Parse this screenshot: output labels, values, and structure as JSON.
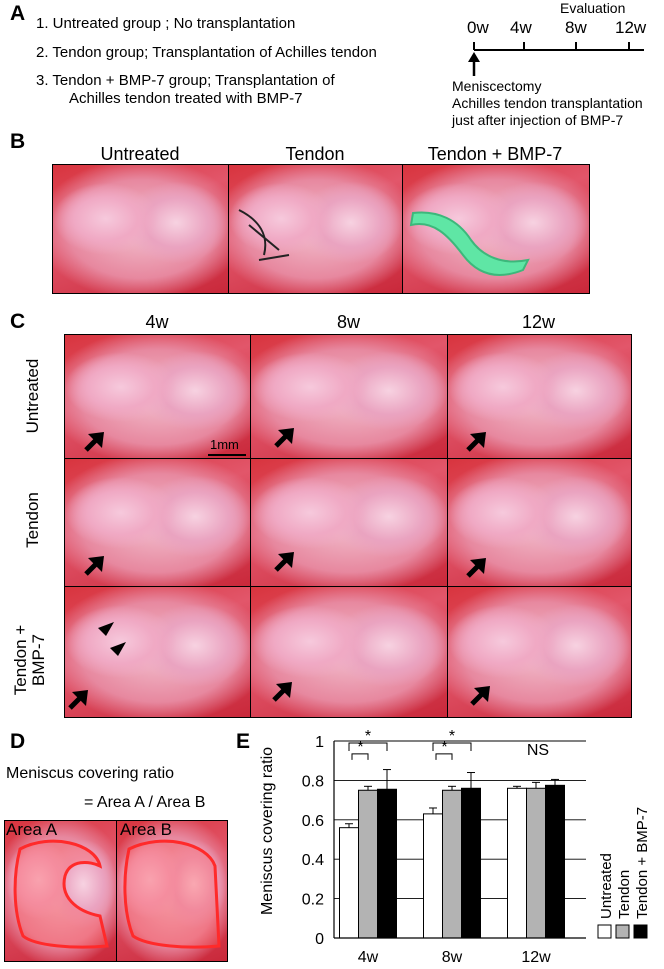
{
  "panelA": {
    "letter": "A",
    "groups": [
      "1. Untreated group ; No transplantation",
      "2. Tendon group; Transplantation of Achilles tendon",
      "3. Tendon + BMP-7 group; Transplantation of",
      "Achilles tendon treated with BMP-7"
    ],
    "timeline": {
      "evaluation_label": "Evaluation",
      "ticks": [
        "0w",
        "4w",
        "8w",
        "12w"
      ],
      "notes": [
        "Meniscectomy",
        "Achilles tendon transplantation",
        "just after injection of BMP-7"
      ]
    }
  },
  "panelB": {
    "letter": "B",
    "headers": [
      "Untreated",
      "Tendon",
      "Tendon + BMP-7"
    ]
  },
  "panelC": {
    "letter": "C",
    "columns": [
      "4w",
      "8w",
      "12w"
    ],
    "rows": [
      "Untreated",
      "Tendon",
      "Tendon +\nBMP-7"
    ],
    "row_line1": [
      "Untreated",
      "Tendon",
      "Tendon +"
    ],
    "row_line2": [
      "",
      "",
      "BMP-7"
    ],
    "scale_bar": "1mm"
  },
  "panelD": {
    "letter": "D",
    "title": "Meniscus covering ratio",
    "formula": "= Area A / Area B",
    "labels": [
      "Area A",
      "Area B"
    ]
  },
  "panelE": {
    "letter": "E"
  },
  "chart_data": {
    "type": "bar",
    "categories": [
      "4w",
      "8w",
      "12w"
    ],
    "series": [
      {
        "name": "Untreated",
        "values": [
          0.56,
          0.63,
          0.76
        ],
        "errors": [
          0.02,
          0.03,
          0.01
        ],
        "color": "#ffffff"
      },
      {
        "name": "Tendon",
        "values": [
          0.75,
          0.75,
          0.76
        ],
        "errors": [
          0.02,
          0.02,
          0.03
        ],
        "color": "#b3b3b3"
      },
      {
        "name": "Tendon + BMP-7",
        "values": [
          0.755,
          0.76,
          0.775
        ],
        "errors": [
          0.1,
          0.08,
          0.03
        ],
        "color": "#000000"
      }
    ],
    "ylabel": "Meniscus covering ratio",
    "xlabel": "",
    "ylim": [
      0,
      1
    ],
    "yticks": [
      0,
      0.2,
      0.4,
      0.6,
      0.8,
      1
    ],
    "ytick_labels": [
      "0",
      "0.2",
      "0.4",
      "0.6",
      "0.8",
      "1"
    ],
    "grid": true,
    "legend_position": "right, rotated vertical",
    "annotations": {
      "significance_star": "*",
      "ns_label": "NS"
    }
  }
}
